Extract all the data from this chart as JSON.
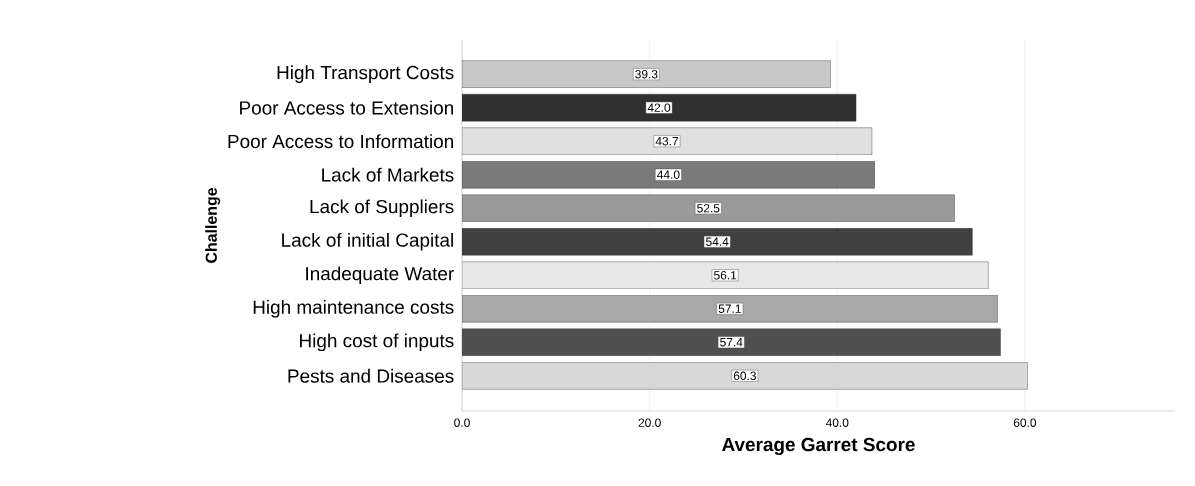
{
  "chart_data": {
    "type": "bar",
    "orientation": "horizontal",
    "xlabel": "Average Garret Score",
    "ylabel": "Challenge",
    "categories": [
      "High Transport Costs",
      "Poor Access to Extension",
      "Poor Access to Information",
      "Lack of Markets",
      "Lack of Suppliers",
      "Lack of initial Capital",
      "Inadequate Water",
      "High maintenance costs",
      "High cost of inputs",
      "Pests and Diseases"
    ],
    "values": [
      39.3,
      42.0,
      43.7,
      44.0,
      52.5,
      54.4,
      56.1,
      57.1,
      57.4,
      60.3
    ],
    "value_labels": [
      "39.3",
      "42.0",
      "43.7",
      "44.0",
      "52.5",
      "54.4",
      "56.1",
      "57.1",
      "57.4",
      "60.3"
    ],
    "colors": [
      "#c8c8c8",
      "#303030",
      "#e0e0e0",
      "#7a7a7a",
      "#9a9a9a",
      "#404040",
      "#e8e8e8",
      "#a8a8a8",
      "#505050",
      "#d8d8d8"
    ],
    "xlim": [
      0,
      76
    ],
    "xticks": [
      {
        "value": 0,
        "label": "0.0"
      },
      {
        "value": 20,
        "label": "20.0"
      },
      {
        "value": 40,
        "label": "40.0"
      },
      {
        "value": 60,
        "label": "60.0"
      }
    ],
    "grid": "x"
  }
}
